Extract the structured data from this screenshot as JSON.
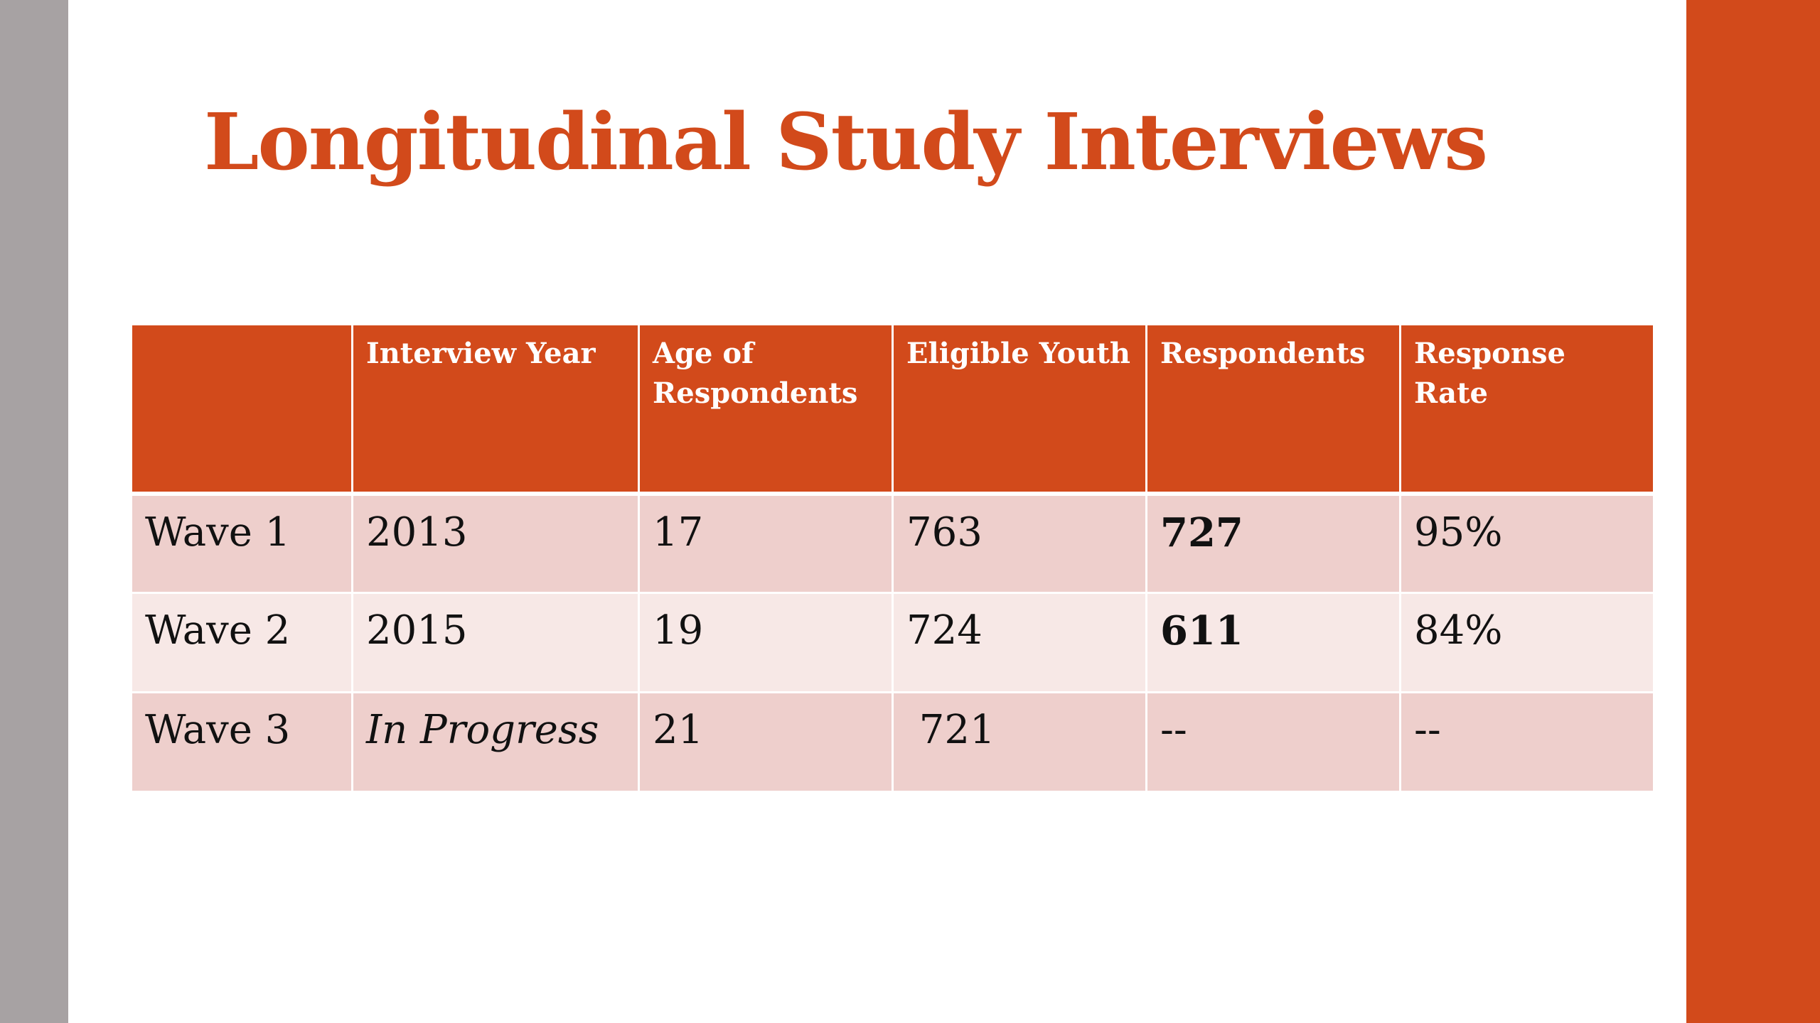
{
  "slide": {
    "title": "Longitudinal Study Interviews",
    "colors": {
      "accent": "#d24a1b",
      "left_bar": "#a7a2a3",
      "row_dark": "#eecfcc",
      "row_light": "#f7e8e6"
    }
  },
  "table": {
    "headers": [
      "",
      "Interview Year",
      "Age of Respondents",
      "Eligible Youth",
      "Respondents",
      "Response Rate"
    ],
    "rows": [
      {
        "wave": "Wave 1",
        "year": "2013",
        "age": "17",
        "eligible": "763",
        "respondents": "727",
        "rate": "95%"
      },
      {
        "wave": "Wave 2",
        "year": "2015",
        "age": "19",
        "eligible": "724",
        "respondents": "611",
        "rate": "84%"
      },
      {
        "wave": "Wave 3",
        "year": "In Progress",
        "age": "21",
        "eligible": " 721",
        "respondents": "--",
        "rate": "--"
      }
    ]
  }
}
